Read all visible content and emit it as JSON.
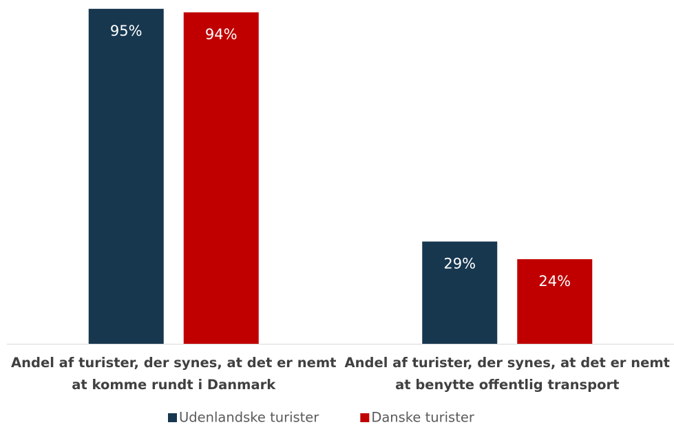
{
  "chart_data": {
    "type": "bar",
    "categories": [
      "Andel af turister, der synes, at det er nemt at komme rundt i Danmark",
      "Andel af turister, der synes, at det er nemt at benytte offentlig transport"
    ],
    "series": [
      {
        "name": "Udenlandske turister",
        "color": "#17374f",
        "values": [
          95,
          29
        ],
        "value_labels": [
          "95%",
          "29%"
        ]
      },
      {
        "name": "Danske turister",
        "color": "#c00000",
        "values": [
          94,
          24
        ],
        "value_labels": [
          "94%",
          "24%"
        ]
      }
    ],
    "ylim": [
      0,
      97.5
    ],
    "legend": "bottom"
  }
}
